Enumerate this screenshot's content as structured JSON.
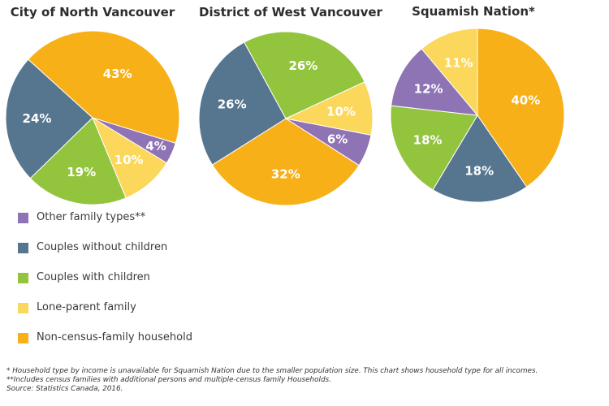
{
  "colors": {
    "Other family types": "#8e73b5",
    "Couples without children": "#56758f",
    "Couples with children": "#92c43d",
    "Lone-parent family": "#fbd75b",
    "Non-census-family household": "#f7b017"
  },
  "chart_data": [
    {
      "type": "pie",
      "title": "City of North Vancouver",
      "slices": [
        {
          "label": "Other family types",
          "value": 4,
          "text": "4%"
        },
        {
          "label": "Lone-parent family",
          "value": 10,
          "text": "10%"
        },
        {
          "label": "Couples with children",
          "value": 19,
          "text": "19%"
        },
        {
          "label": "Couples without children",
          "value": 24,
          "text": "24%"
        },
        {
          "label": "Non-census-family household",
          "value": 43,
          "text": "43%"
        }
      ]
    },
    {
      "type": "pie",
      "title": "District of West Vancouver",
      "slices": [
        {
          "label": "Other family types",
          "value": 6,
          "text": "6%"
        },
        {
          "label": "Non-census-family household",
          "value": 32,
          "text": "32%"
        },
        {
          "label": "Couples without children",
          "value": 26,
          "text": "26%"
        },
        {
          "label": "Couples with children",
          "value": 26,
          "text": "26%"
        },
        {
          "label": "Lone-parent family",
          "value": 10,
          "text": "10%"
        }
      ]
    },
    {
      "type": "pie",
      "title": "Squamish Nation*",
      "slices": [
        {
          "label": "Non-census-family household",
          "value": 40,
          "text": "40%"
        },
        {
          "label": "Couples without children",
          "value": 18,
          "text": "18%"
        },
        {
          "label": "Couples with children",
          "value": 18,
          "text": "18%"
        },
        {
          "label": "Other family types",
          "value": 12,
          "text": "12%"
        },
        {
          "label": "Lone-parent family",
          "value": 11,
          "text": "11%"
        }
      ]
    }
  ],
  "legend": [
    {
      "label": "Other family types**",
      "series": "Other family types"
    },
    {
      "label": "Couples without children",
      "series": "Couples without children"
    },
    {
      "label": "Couples with children",
      "series": "Couples with children"
    },
    {
      "label": "Lone-parent family",
      "series": "Lone-parent family"
    },
    {
      "label": "Non-census-family household",
      "series": "Non-census-family household"
    }
  ],
  "notes": {
    "note1": "* Household type by income is unavailable for Squamish Nation due to the smaller population size. This chart shows household type for all incomes.",
    "note2": "**Includes census families with additional persons and multiple-census family Households.",
    "source": "Source: Statistics Canada, 2016."
  }
}
